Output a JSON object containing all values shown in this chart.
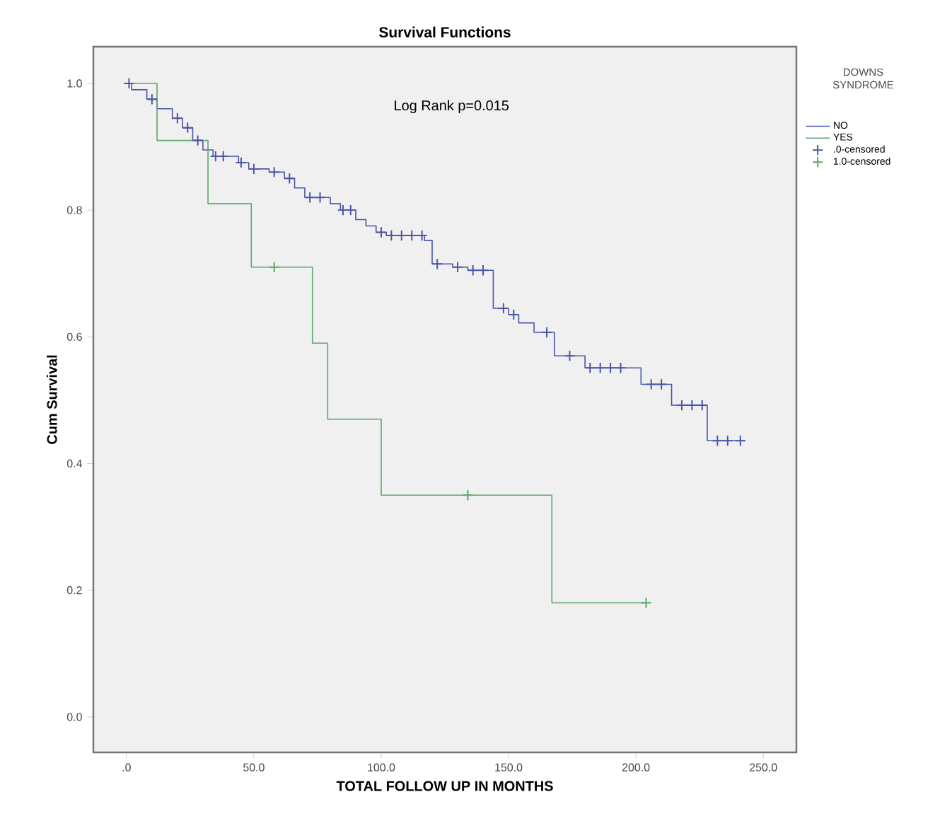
{
  "chart_data": {
    "type": "step",
    "title": "Survival Functions",
    "xlabel": "TOTAL FOLLOW UP IN MONTHS",
    "ylabel": "Cum Survival",
    "legend_title": "DOWNS SYNDROME",
    "legend": "right",
    "grid": false,
    "annotations": [
      "Log Rank p=0.015"
    ],
    "xlim": [
      -13,
      263
    ],
    "ylim": [
      -0.056,
      1.058
    ],
    "xticks": [
      {
        "value": 0,
        "label": ".0"
      },
      {
        "value": 50,
        "label": "50.0"
      },
      {
        "value": 100,
        "label": "100.0"
      },
      {
        "value": 150,
        "label": "150.0"
      },
      {
        "value": 200,
        "label": "200.0"
      },
      {
        "value": 250,
        "label": "250.0"
      }
    ],
    "yticks": [
      {
        "value": 0,
        "label": "0.0"
      },
      {
        "value": 0.2,
        "label": "0.2"
      },
      {
        "value": 0.4,
        "label": "0.4"
      },
      {
        "value": 0.6,
        "label": "0.6"
      },
      {
        "value": 0.8,
        "label": "0.8"
      },
      {
        "value": 1.0,
        "label": "1.0"
      }
    ],
    "series": [
      {
        "name": "NO",
        "color": "#4a56a8",
        "x": [
          0,
          2,
          8,
          12,
          18,
          22,
          26,
          30,
          34,
          44,
          48,
          56,
          62,
          66,
          70,
          80,
          84,
          90,
          94,
          98,
          102,
          117,
          120,
          128,
          134,
          144,
          150,
          154,
          160,
          168,
          180,
          202,
          214,
          228,
          242
        ],
        "values": [
          1.0,
          0.99,
          0.975,
          0.96,
          0.945,
          0.93,
          0.91,
          0.895,
          0.885,
          0.875,
          0.865,
          0.86,
          0.85,
          0.835,
          0.82,
          0.81,
          0.8,
          0.785,
          0.775,
          0.765,
          0.76,
          0.752,
          0.715,
          0.71,
          0.705,
          0.645,
          0.635,
          0.622,
          0.607,
          0.57,
          0.551,
          0.525,
          0.492,
          0.436,
          0.436
        ]
      },
      {
        "name": "YES",
        "color": "#5aa86a",
        "x": [
          0,
          12,
          32,
          49,
          73,
          79,
          100,
          167,
          204
        ],
        "values": [
          1.0,
          0.91,
          0.81,
          0.71,
          0.59,
          0.47,
          0.35,
          0.18,
          0.18
        ]
      },
      {
        "name": ".0-censored",
        "type": "scatter",
        "marker": "cross",
        "color": "#4a56a8",
        "x": [
          1,
          10,
          20,
          24,
          28,
          35,
          38,
          45,
          50,
          58,
          64,
          72,
          76,
          85,
          88,
          100,
          104,
          108,
          112,
          116,
          122,
          130,
          136,
          140,
          148,
          152,
          165,
          174,
          182,
          186,
          190,
          194,
          206,
          210,
          218,
          222,
          226,
          232,
          236,
          241
        ],
        "values": [
          1.0,
          0.975,
          0.945,
          0.93,
          0.91,
          0.885,
          0.885,
          0.875,
          0.865,
          0.86,
          0.85,
          0.82,
          0.82,
          0.8,
          0.8,
          0.765,
          0.76,
          0.76,
          0.76,
          0.76,
          0.715,
          0.71,
          0.705,
          0.705,
          0.645,
          0.635,
          0.607,
          0.57,
          0.551,
          0.551,
          0.551,
          0.551,
          0.525,
          0.525,
          0.492,
          0.492,
          0.492,
          0.436,
          0.436,
          0.436
        ]
      },
      {
        "name": "1.0-censored",
        "type": "scatter",
        "marker": "cross",
        "color": "#5aa86a",
        "x": [
          58,
          134,
          204
        ],
        "values": [
          0.71,
          0.35,
          0.18
        ]
      }
    ]
  }
}
